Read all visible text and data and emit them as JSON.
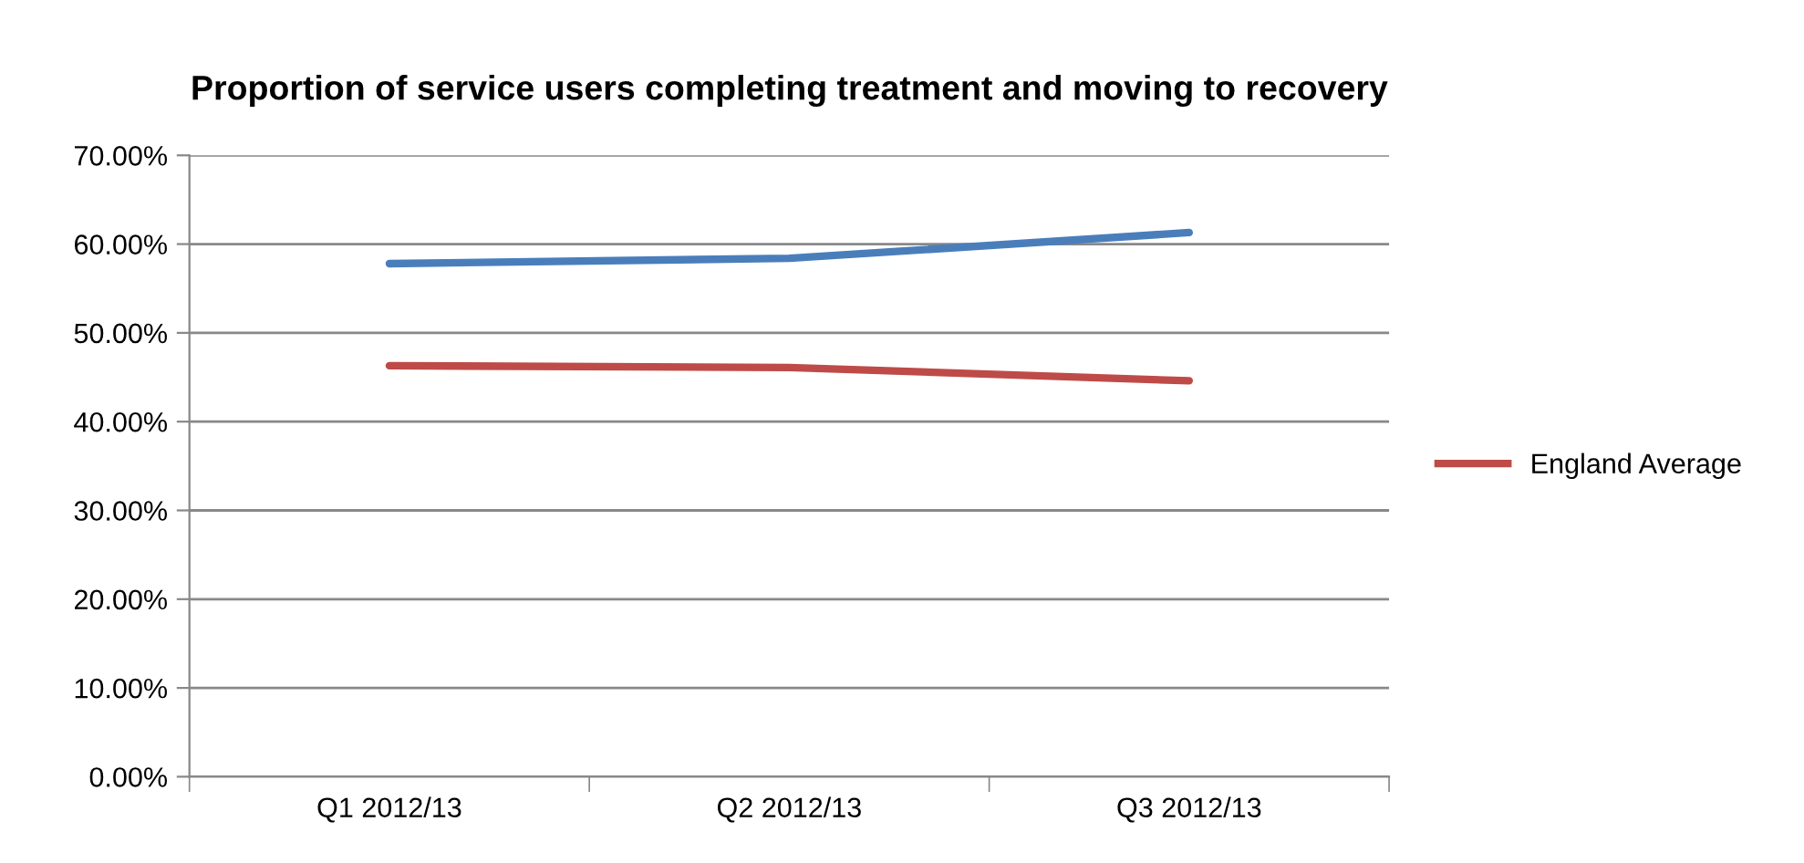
{
  "chart_data": {
    "type": "line",
    "title": "Proportion of service users completing treatment and moving to recovery",
    "categories": [
      "Q1 2012/13",
      "Q2 2012/13",
      "Q3 2012/13"
    ],
    "series": [
      {
        "color": "#4a7ebb",
        "values": [
          57.8,
          58.4,
          61.3
        ]
      },
      {
        "name": "England Average",
        "color": "#be4b48",
        "values": [
          46.3,
          46.1,
          44.6
        ]
      }
    ],
    "ylim": [
      0,
      70
    ],
    "yticks": [
      {
        "value": 0,
        "label": "0.00%"
      },
      {
        "value": 10,
        "label": "10.00%"
      },
      {
        "value": 20,
        "label": "20.00%"
      },
      {
        "value": 30,
        "label": "30.00%"
      },
      {
        "value": 40,
        "label": "40.00%"
      },
      {
        "value": 50,
        "label": "50.00%"
      },
      {
        "value": 60,
        "label": "60.00%"
      },
      {
        "value": 70,
        "label": "70.00%"
      }
    ],
    "grid": "y",
    "legend": "right",
    "marker": "none",
    "line_style": "solid"
  }
}
